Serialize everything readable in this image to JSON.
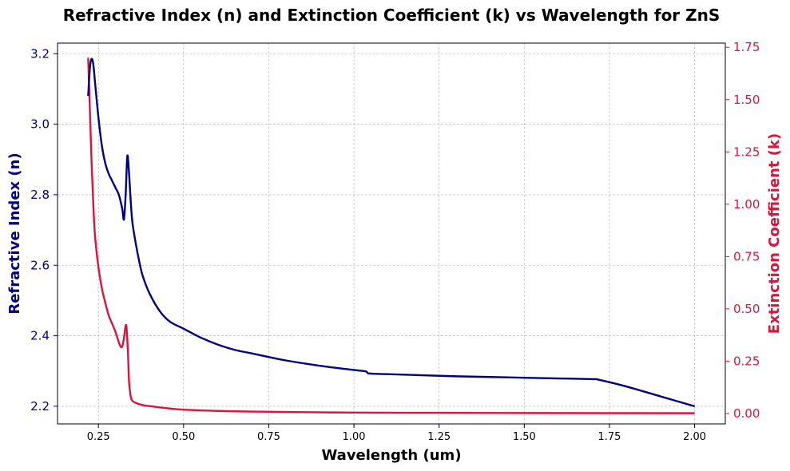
{
  "chart_data": {
    "type": "line",
    "title": "Refractive Index (n) and Extinction Coefficient (k) vs Wavelength for ZnS",
    "xlabel": "Wavelength (um)",
    "ylabel_left": "Refractive Index (n)",
    "ylabel_right": "Extinction Coefficient (k)",
    "xlim": [
      0.13,
      2.09
    ],
    "ylim_left": [
      2.15,
      3.23
    ],
    "ylim_right": [
      -0.05,
      1.77
    ],
    "grid": true,
    "colors": {
      "n": "#000080",
      "k": "#DC143C"
    },
    "x_ticks": [
      "0.25",
      "0.50",
      "0.75",
      "1.00",
      "1.25",
      "1.50",
      "1.75",
      "2.00"
    ],
    "y_left_ticks": [
      "2.2",
      "2.4",
      "2.6",
      "2.8",
      "3.0",
      "3.2"
    ],
    "y_right_ticks": [
      "0.00",
      "0.25",
      "0.50",
      "0.75",
      "1.00",
      "1.25",
      "1.50",
      "1.75"
    ],
    "series": [
      {
        "key": "n",
        "axis": "left",
        "x": [
          0.22,
          0.225,
          0.23,
          0.235,
          0.24,
          0.25,
          0.26,
          0.27,
          0.28,
          0.29,
          0.3,
          0.31,
          0.32,
          0.325,
          0.33,
          0.335,
          0.34,
          0.345,
          0.35,
          0.36,
          0.37,
          0.38,
          0.4,
          0.43,
          0.46,
          0.5,
          0.55,
          0.6,
          0.65,
          0.7,
          0.8,
          0.9,
          1.0,
          1.035,
          1.045,
          1.1,
          1.2,
          1.3,
          1.4,
          1.5,
          1.6,
          1.7,
          1.72,
          1.8,
          1.9,
          2.0
        ],
        "y": [
          3.08,
          3.16,
          3.185,
          3.17,
          3.12,
          3.02,
          2.94,
          2.89,
          2.86,
          2.84,
          2.82,
          2.8,
          2.76,
          2.73,
          2.8,
          2.91,
          2.86,
          2.78,
          2.72,
          2.66,
          2.61,
          2.57,
          2.52,
          2.47,
          2.44,
          2.42,
          2.395,
          2.375,
          2.36,
          2.35,
          2.33,
          2.315,
          2.303,
          2.299,
          2.293,
          2.291,
          2.288,
          2.285,
          2.283,
          2.281,
          2.279,
          2.277,
          2.275,
          2.256,
          2.228,
          2.2
        ]
      },
      {
        "key": "k",
        "axis": "right",
        "x": [
          0.22,
          0.222,
          0.225,
          0.23,
          0.235,
          0.24,
          0.25,
          0.26,
          0.27,
          0.28,
          0.29,
          0.3,
          0.31,
          0.315,
          0.32,
          0.325,
          0.33,
          0.333,
          0.337,
          0.34,
          0.345,
          0.35,
          0.36,
          0.38,
          0.4,
          0.45,
          0.5,
          0.6,
          0.7,
          0.8,
          1.0,
          1.2,
          1.5,
          2.0
        ],
        "y": [
          1.7,
          1.6,
          1.45,
          1.2,
          1.0,
          0.85,
          0.7,
          0.6,
          0.53,
          0.47,
          0.43,
          0.39,
          0.34,
          0.32,
          0.32,
          0.36,
          0.42,
          0.4,
          0.28,
          0.15,
          0.08,
          0.06,
          0.05,
          0.04,
          0.035,
          0.025,
          0.018,
          0.012,
          0.009,
          0.007,
          0.004,
          0.003,
          0.002,
          0.001
        ]
      }
    ]
  }
}
